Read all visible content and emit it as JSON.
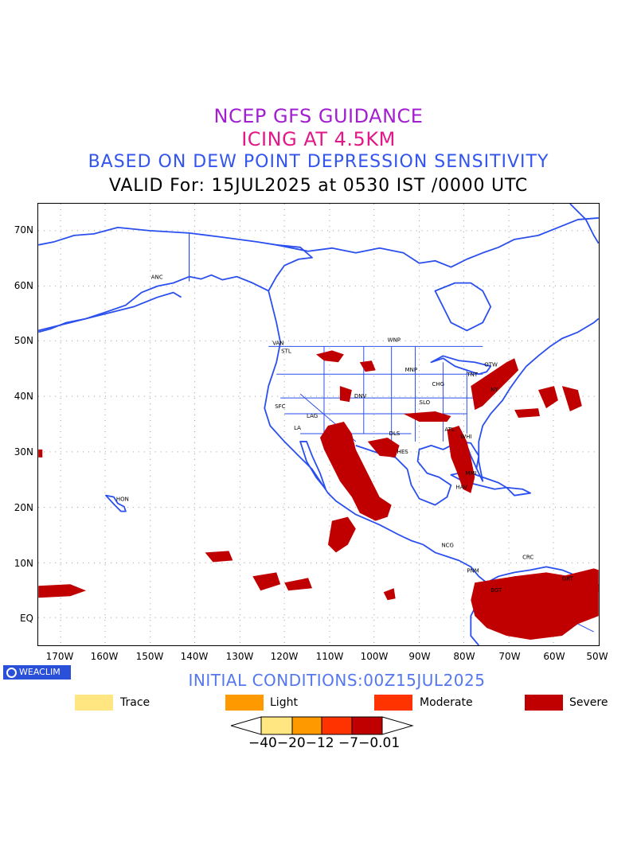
{
  "titles": {
    "line1": "NCEP GFS GUIDANCE",
    "line2": "ICING AT 4.5KM",
    "line3": "BASED ON DEW POINT DEPRESSION SENSITIVITY",
    "line4": "VALID For: 15JUL2025 at 0530 IST /0000 UTC"
  },
  "axes": {
    "y_labels": [
      "70N",
      "60N",
      "50N",
      "40N",
      "30N",
      "20N",
      "10N",
      "EQ"
    ],
    "x_labels": [
      "170W",
      "160W",
      "150W",
      "140W",
      "130W",
      "120W",
      "110W",
      "100W",
      "90W",
      "80W",
      "70W",
      "60W",
      "50W"
    ],
    "lon_range": [
      -175,
      -50
    ],
    "lat_range": [
      -5,
      75
    ]
  },
  "logo": {
    "text": "WEACLIM"
  },
  "initial_conditions": "INITIAL CONDITIONS:00Z15JUL2025",
  "legend": [
    {
      "label": "Trace",
      "color": "#ffe680"
    },
    {
      "label": "Light",
      "color": "#ff9900"
    },
    {
      "label": "Moderate",
      "color": "#ff3300"
    },
    {
      "label": "Severe",
      "color": "#c00000"
    }
  ],
  "colorbar": {
    "labels_text": "−40−20−12 −7−0.01",
    "colors": [
      "#ffe680",
      "#ff9900",
      "#ff3300",
      "#c00000"
    ]
  },
  "cities": [
    "ANC",
    "VAN",
    "STL",
    "WNP",
    "MNP",
    "CHG",
    "TNT",
    "OTW",
    "NY",
    "SFC",
    "DNV",
    "SLO",
    "LAG",
    "LA",
    "DLS",
    "ATL",
    "WHI",
    "HES",
    "MMI",
    "HAV",
    "HON",
    "NCG",
    "PNM",
    "BGT",
    "CRC",
    "GRT"
  ]
}
